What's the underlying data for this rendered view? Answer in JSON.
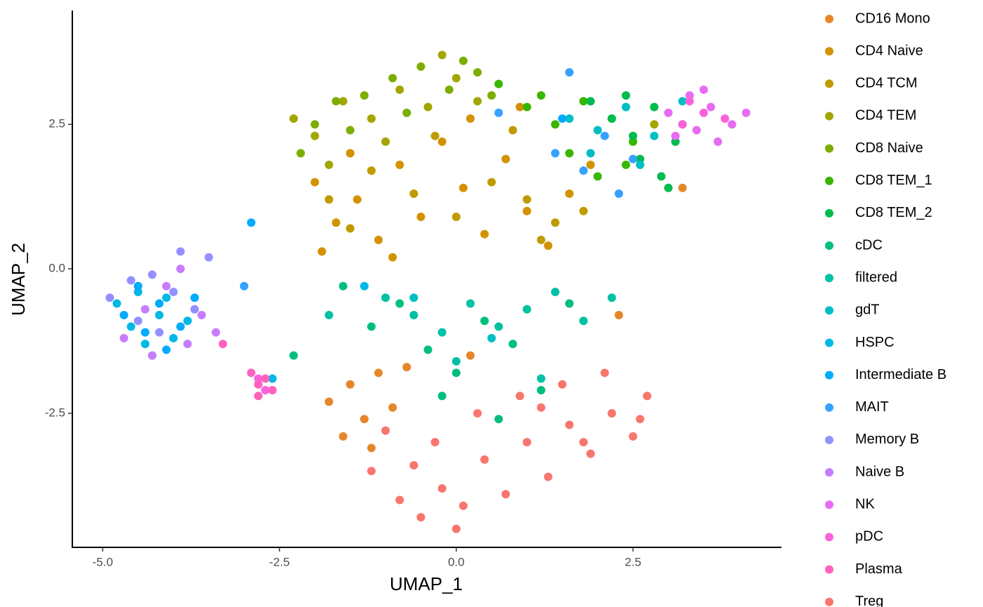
{
  "chart_data": {
    "type": "scatter",
    "xlabel": "UMAP_1",
    "ylabel": "UMAP_2",
    "xlim": [
      -5.43,
      4.6
    ],
    "ylim": [
      -4.82,
      4.47
    ],
    "xticks": [
      {
        "value": -5,
        "label": "-5.0"
      },
      -2.5,
      {
        "value": 0,
        "label": "0.0"
      },
      2.5
    ],
    "yticks": [
      -2.5,
      {
        "value": 0,
        "label": "0.0"
      },
      2.5
    ],
    "legend": "right",
    "series": [
      {
        "name": "CD16 Mono",
        "color": "#E6862A",
        "x": [
          -1.8,
          -1.5,
          -1.3,
          -1.1,
          -0.9,
          -1.6,
          -1.2,
          -0.7,
          0.2,
          2.3,
          3.2
        ],
        "y": [
          -2.3,
          -2.0,
          -2.6,
          -1.8,
          -2.4,
          -2.9,
          -3.1,
          -1.7,
          -1.5,
          -0.8,
          1.4
        ]
      },
      {
        "name": "CD4 Naive",
        "color": "#D39200",
        "x": [
          -2.0,
          -1.7,
          -1.4,
          -1.1,
          -0.8,
          -0.5,
          -0.2,
          0.1,
          0.4,
          0.7,
          1.0,
          1.3,
          1.6,
          -1.5,
          -0.9,
          0.2,
          0.9,
          -1.9,
          1.9
        ],
        "y": [
          1.5,
          0.8,
          1.2,
          0.5,
          1.8,
          0.9,
          2.2,
          1.4,
          0.6,
          1.9,
          1.0,
          0.4,
          1.3,
          2.0,
          0.2,
          2.6,
          2.8,
          0.3,
          1.8
        ]
      },
      {
        "name": "CD4 TCM",
        "color": "#C09B00",
        "x": [
          -1.8,
          -1.2,
          -0.6,
          0.0,
          0.5,
          1.0,
          1.4,
          1.8,
          -0.3,
          0.8,
          1.2,
          -1.5
        ],
        "y": [
          1.2,
          1.7,
          1.3,
          0.9,
          1.5,
          1.2,
          0.8,
          1.0,
          2.3,
          2.4,
          0.5,
          0.7
        ]
      },
      {
        "name": "CD4 TEM",
        "color": "#A3A500",
        "x": [
          -2.3,
          -2.0,
          -1.6,
          -1.2,
          -0.8,
          -0.4,
          0.0,
          0.3,
          -1.0,
          -1.8,
          2.8,
          -0.2
        ],
        "y": [
          2.6,
          2.3,
          2.9,
          2.6,
          3.1,
          2.8,
          3.3,
          2.9,
          2.2,
          1.8,
          2.5,
          3.7
        ]
      },
      {
        "name": "CD8 Naive",
        "color": "#7CAE00",
        "x": [
          -2.0,
          -1.7,
          -1.3,
          -0.9,
          -0.5,
          -0.1,
          0.3,
          0.5,
          -1.5,
          -0.7,
          0.1,
          -2.2
        ],
        "y": [
          2.5,
          2.9,
          3.0,
          3.3,
          3.5,
          3.1,
          3.4,
          3.0,
          2.4,
          2.7,
          3.6,
          2.0
        ]
      },
      {
        "name": "CD8 TEM_1",
        "color": "#39B600",
        "x": [
          1.0,
          1.4,
          1.8,
          2.2,
          2.5,
          1.6,
          2.0,
          2.4,
          1.2,
          0.6
        ],
        "y": [
          2.8,
          2.5,
          2.9,
          2.6,
          2.2,
          2.0,
          1.6,
          1.8,
          3.0,
          3.2
        ]
      },
      {
        "name": "CD8 TEM_2",
        "color": "#00BB4E",
        "x": [
          2.2,
          2.5,
          2.8,
          3.1,
          2.6,
          2.9,
          3.2,
          2.4,
          1.9,
          3.0
        ],
        "y": [
          2.6,
          2.3,
          2.8,
          2.2,
          1.9,
          1.6,
          2.5,
          3.0,
          2.9,
          1.4
        ]
      },
      {
        "name": "cDC",
        "color": "#00BF7D",
        "x": [
          -1.2,
          -0.8,
          -0.4,
          0.0,
          0.4,
          0.8,
          1.2,
          -2.3,
          -1.6,
          0.6,
          1.6,
          -0.2
        ],
        "y": [
          -1.0,
          -0.6,
          -1.4,
          -1.8,
          -0.9,
          -1.3,
          -2.1,
          -1.5,
          -0.3,
          -2.6,
          -0.6,
          -2.2
        ]
      },
      {
        "name": "filtered",
        "color": "#00C1A3",
        "x": [
          -1.0,
          -0.6,
          -0.2,
          0.2,
          0.6,
          1.0,
          1.4,
          1.8,
          2.2,
          -1.8,
          0.0,
          1.2
        ],
        "y": [
          -0.5,
          -0.8,
          -1.1,
          -0.6,
          -1.0,
          -0.7,
          -0.4,
          -0.9,
          -0.5,
          -0.8,
          -1.6,
          -1.9
        ]
      },
      {
        "name": "gdT",
        "color": "#00BFC4",
        "x": [
          1.6,
          2.0,
          2.4,
          2.8,
          3.2,
          1.9,
          2.6,
          -0.6,
          0.5
        ],
        "y": [
          2.6,
          2.4,
          2.8,
          2.3,
          2.9,
          2.0,
          1.8,
          -0.5,
          -1.2
        ]
      },
      {
        "name": "HSPC",
        "color": "#00B8E5",
        "x": [
          -4.8,
          -4.6,
          -4.4,
          -4.2,
          -4.0,
          -3.8,
          -4.5,
          -4.3,
          -4.1,
          -2.6,
          -1.3
        ],
        "y": [
          -0.6,
          -1.0,
          -1.3,
          -0.8,
          -1.2,
          -0.9,
          -0.4,
          -1.5,
          -0.5,
          -1.9,
          -0.3
        ]
      },
      {
        "name": "Intermediate B",
        "color": "#00ABFD",
        "x": [
          -4.7,
          -4.5,
          -4.2,
          -3.9,
          -4.4,
          -4.1,
          -3.7,
          -2.9,
          1.5
        ],
        "y": [
          -0.8,
          -0.3,
          -0.6,
          -1.0,
          -1.1,
          -1.4,
          -0.5,
          0.8,
          2.6
        ]
      },
      {
        "name": "MAIT",
        "color": "#35A2FF",
        "x": [
          1.4,
          1.8,
          2.1,
          2.5,
          1.6,
          2.3,
          0.6,
          -3.0
        ],
        "y": [
          2.0,
          1.7,
          2.3,
          1.9,
          3.4,
          1.3,
          2.7,
          -0.3
        ]
      },
      {
        "name": "Memory B",
        "color": "#9590FF",
        "x": [
          -4.9,
          -4.6,
          -4.3,
          -4.0,
          -3.7,
          -4.5,
          -4.2,
          -3.9,
          -3.5
        ],
        "y": [
          -0.5,
          -0.2,
          -0.1,
          -0.4,
          -0.7,
          -0.9,
          -1.1,
          0.3,
          0.2
        ]
      },
      {
        "name": "Naive B",
        "color": "#C77CFF",
        "x": [
          -4.7,
          -4.4,
          -4.1,
          -3.8,
          -3.6,
          -4.3,
          -3.4,
          -3.9
        ],
        "y": [
          -1.2,
          -0.7,
          -0.3,
          -1.3,
          -0.8,
          -1.5,
          -1.1,
          0.0
        ]
      },
      {
        "name": "NK",
        "color": "#E76BF3",
        "x": [
          3.0,
          3.3,
          3.6,
          3.9,
          3.4,
          3.7,
          3.1,
          4.1,
          3.5
        ],
        "y": [
          2.7,
          3.0,
          2.8,
          2.5,
          2.4,
          2.2,
          2.3,
          2.7,
          3.1
        ]
      },
      {
        "name": "pDC",
        "color": "#FA62DB",
        "x": [
          3.2,
          3.5,
          3.8,
          3.3,
          -2.8,
          -2.7
        ],
        "y": [
          2.5,
          2.7,
          2.6,
          2.9,
          -1.9,
          -2.1
        ]
      },
      {
        "name": "Plasma",
        "color": "#FF62BC",
        "x": [
          -2.9,
          -2.8,
          -2.7,
          -2.8,
          -2.6,
          -3.3
        ],
        "y": [
          -1.8,
          -2.0,
          -1.9,
          -2.2,
          -2.1,
          -1.3
        ]
      },
      {
        "name": "Treg",
        "color": "#F8766D",
        "x": [
          -1.2,
          -0.8,
          -0.5,
          -0.2,
          0.1,
          0.4,
          0.7,
          1.0,
          1.3,
          1.6,
          1.9,
          2.2,
          2.5,
          2.7,
          -1.0,
          -0.3,
          0.3,
          0.9,
          1.5,
          2.1,
          2.6,
          0.0,
          -0.6,
          1.2,
          1.8
        ],
        "y": [
          -3.5,
          -4.0,
          -4.3,
          -3.8,
          -4.1,
          -3.3,
          -3.9,
          -3.0,
          -3.6,
          -2.7,
          -3.2,
          -2.5,
          -2.9,
          -2.2,
          -2.8,
          -3.0,
          -2.5,
          -2.2,
          -2.0,
          -1.8,
          -2.6,
          -4.5,
          -3.4,
          -2.4,
          -3.0
        ]
      }
    ]
  }
}
